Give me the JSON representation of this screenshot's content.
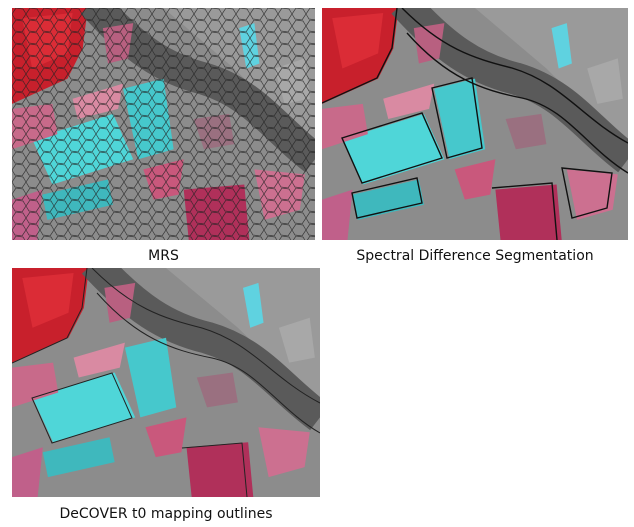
{
  "panels": [
    {
      "caption": "MRS"
    },
    {
      "caption": "Spectral Difference Segmentation"
    },
    {
      "caption": "DeCOVER t0 mapping outlines"
    }
  ]
}
